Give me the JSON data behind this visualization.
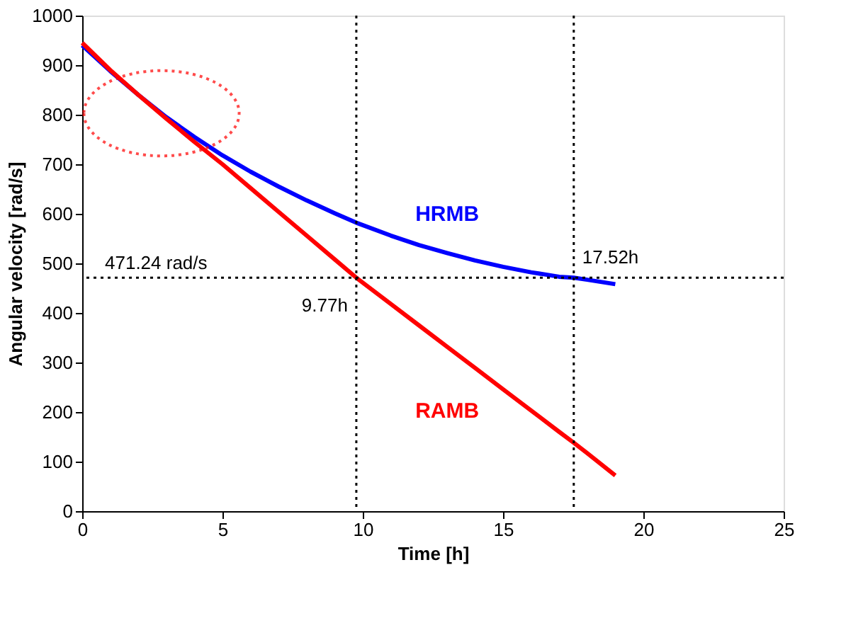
{
  "chart_data": {
    "type": "line",
    "xlabel": "Time [h]",
    "ylabel": "Angular velocity [rad/s]",
    "xlim": [
      0,
      25
    ],
    "xticks": [
      0,
      5,
      10,
      15,
      20,
      25
    ],
    "ylim": [
      0,
      1000
    ],
    "yticks": [
      0,
      100,
      200,
      300,
      400,
      500,
      600,
      700,
      800,
      900,
      1000
    ],
    "grid": false,
    "legend": false,
    "marker": "none",
    "line_style": "solid",
    "series": [
      {
        "name": "HRMB",
        "color": "#0000ff",
        "x": [
          0,
          1,
          2,
          3,
          4,
          5,
          6,
          7,
          8,
          9,
          9.77,
          11,
          12,
          13,
          14,
          15,
          16,
          17,
          17.52,
          18,
          19
        ],
        "values": [
          940,
          888,
          840,
          795,
          755,
          718,
          685,
          655,
          627,
          601,
          582,
          556,
          537,
          521,
          506,
          493,
          482,
          473,
          471,
          467,
          458
        ]
      },
      {
        "name": "RAMB",
        "color": "#ff0000",
        "x": [
          0,
          1,
          2,
          3,
          4,
          5,
          6,
          7,
          8,
          9,
          9.77,
          11,
          12,
          13,
          14,
          15,
          16,
          17,
          17.52,
          18,
          19
        ],
        "values": [
          945,
          890,
          840,
          792,
          745,
          700,
          652,
          604,
          556,
          508,
          471,
          418,
          375,
          332,
          289,
          246,
          203,
          160,
          138,
          117,
          72
        ]
      }
    ],
    "ref_lines": [
      {
        "axis": "y",
        "value": 471.24,
        "label": "471.24 rad/s",
        "color": "#000000",
        "line_style": "dotted"
      },
      {
        "axis": "x",
        "value": 9.77,
        "label": "9.77h",
        "color": "#000000",
        "line_style": "dotted"
      },
      {
        "axis": "x",
        "value": 17.52,
        "label": "17.52h",
        "color": "#000000",
        "line_style": "dotted"
      }
    ]
  }
}
